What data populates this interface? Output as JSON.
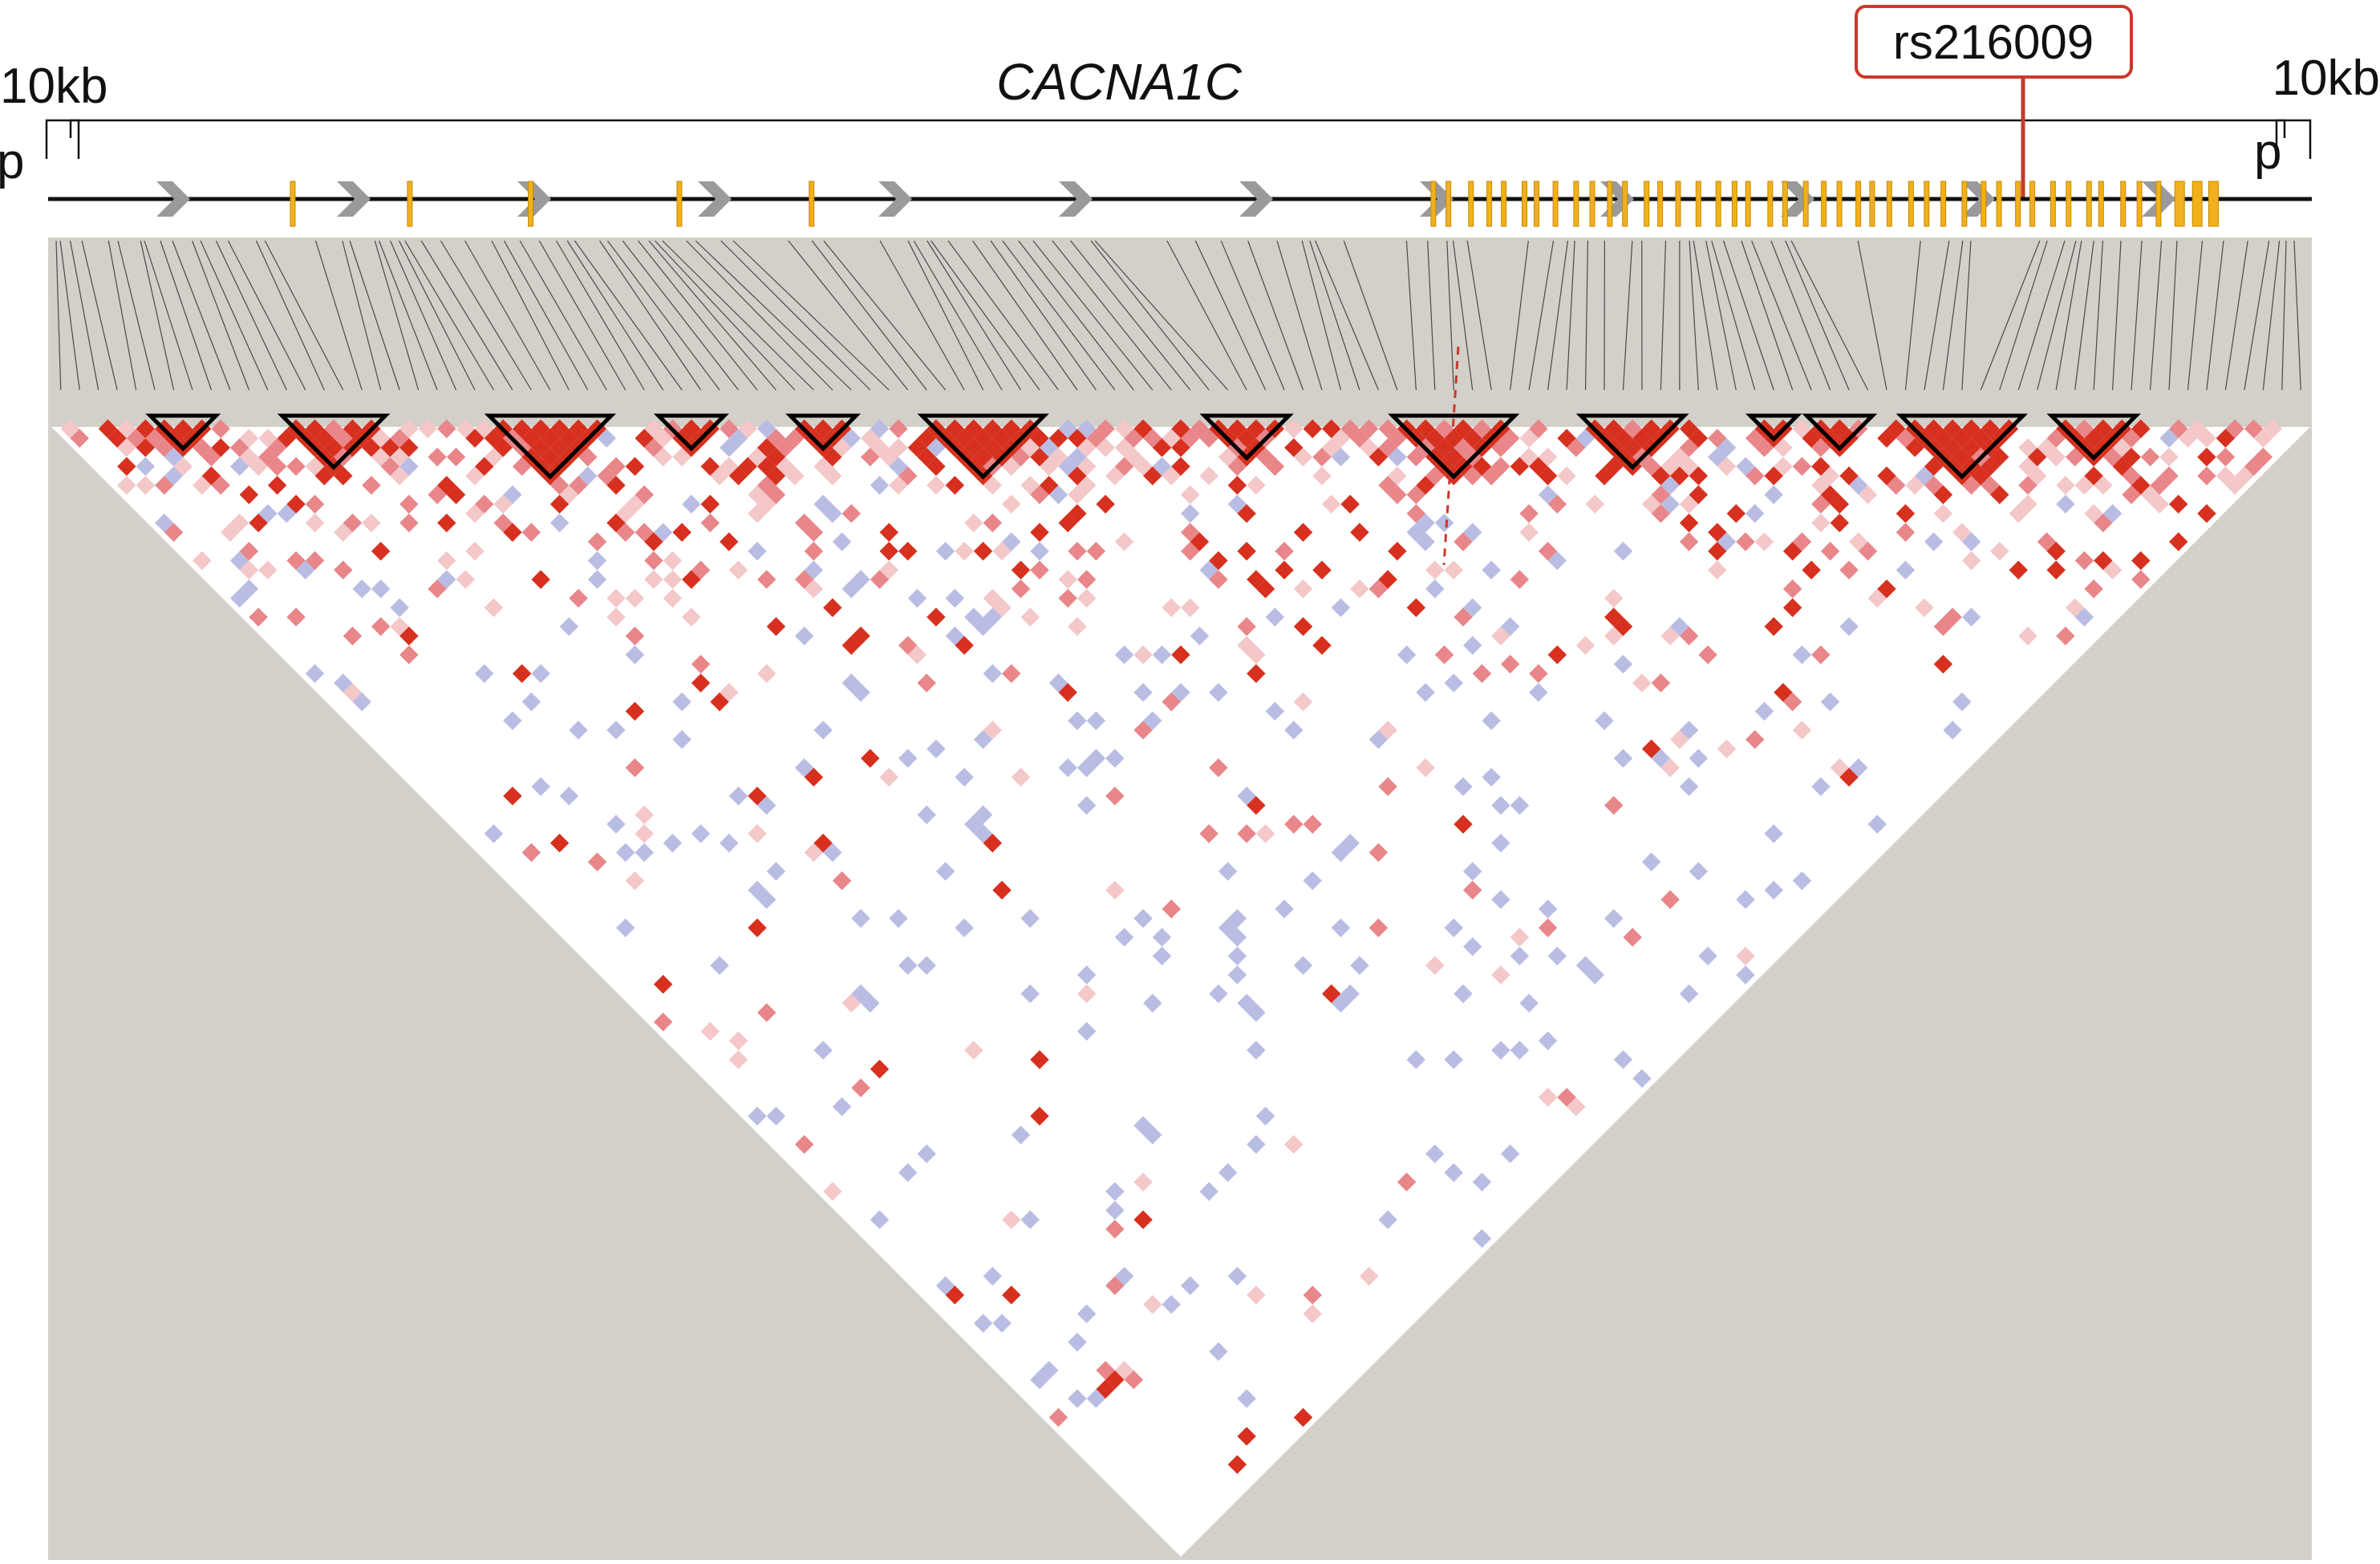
{
  "labels": {
    "gene_name": "CACNA1C",
    "snp_name": "rs216009",
    "flank_left": "10kb",
    "flank_right": "10kb",
    "promoter_left": "p",
    "promoter_right": "p"
  },
  "colors": {
    "background_panel": "#d3cfc9",
    "strong_ld": "#d7301f",
    "medium_ld": "#e8868a",
    "weak_ld": "#f4c7c8",
    "low_lod": "#b9bde3",
    "exon": "#f2b01e",
    "direction_arrow": "#9a9a9a",
    "snp_highlight": "#c8392b",
    "block_outline": "#000000"
  },
  "diagram": {
    "snp_count": 120,
    "exon_count": 50,
    "highlighted_snp_index": 83,
    "strand_arrow_count": 12
  }
}
